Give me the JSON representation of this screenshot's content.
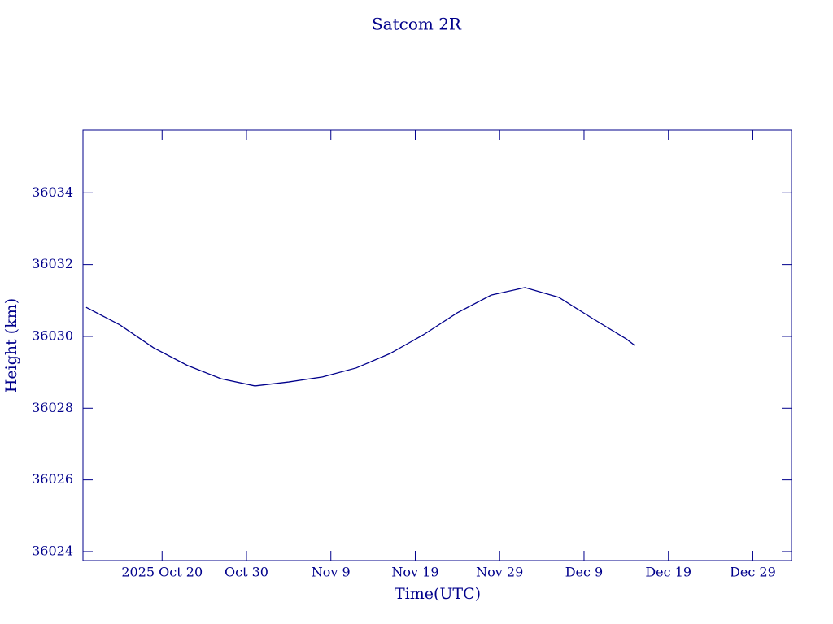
{
  "chart_data": {
    "type": "line",
    "title": "Satcom 2R",
    "x_label": "Time(UTC)",
    "y_label": "Height (km)",
    "x": [
      "2025-10-11",
      "2025-10-15",
      "2025-10-19",
      "2025-10-23",
      "2025-10-27",
      "2025-10-31",
      "2025-11-04",
      "2025-11-08",
      "2025-11-12",
      "2025-11-16",
      "2025-11-20",
      "2025-11-24",
      "2025-11-28",
      "2025-12-02",
      "2025-12-06",
      "2025-12-10",
      "2025-12-14",
      "2025-12-15"
    ],
    "series": [
      {
        "name": "Height",
        "color": "#00008b",
        "values": [
          36030.81,
          36030.32,
          36029.68,
          36029.19,
          36028.82,
          36028.62,
          36028.73,
          36028.87,
          36029.12,
          36029.52,
          36030.05,
          36030.66,
          36031.15,
          36031.36,
          36031.09,
          36030.5,
          36029.93,
          36029.75
        ]
      }
    ],
    "xlim": [
      "2025-10-10T15:00Z",
      "2026-01-02T14:00Z"
    ],
    "xticks": [
      {
        "value": "2025-10-20",
        "label": "2025 Oct 20"
      },
      {
        "value": "2025-10-30",
        "label": "Oct 30"
      },
      {
        "value": "2025-11-09",
        "label": "Nov 9"
      },
      {
        "value": "2025-11-19",
        "label": "Nov 19"
      },
      {
        "value": "2025-11-29",
        "label": "Nov 29"
      },
      {
        "value": "2025-12-09",
        "label": "Dec 9"
      },
      {
        "value": "2025-12-19",
        "label": "Dec 19"
      },
      {
        "value": "2025-12-29",
        "label": "Dec 29"
      }
    ],
    "ylim": [
      36023.75,
      36035.75
    ],
    "yticks": [
      36024,
      36026,
      36028,
      36030,
      36032,
      36034
    ],
    "grid": false
  }
}
